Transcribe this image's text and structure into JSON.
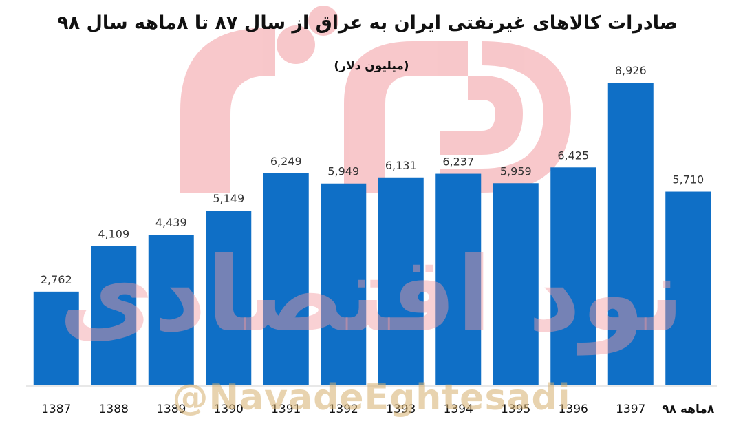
{
  "chart_data": {
    "type": "bar",
    "title": "صادرات کالاهای غیرنفتی ایران به عراق از سال ۸۷ تا ۸ماهه سال ۹۸",
    "subtitle": "(میلیون دلار)",
    "categories": [
      "1387",
      "1388",
      "1389",
      "1390",
      "1391",
      "1392",
      "1393",
      "1394",
      "1395",
      "1396",
      "1397",
      "۸ماهه ۹۸"
    ],
    "values": [
      2762,
      4109,
      4439,
      5149,
      6249,
      5949,
      6131,
      6237,
      5959,
      6425,
      8926,
      5710
    ],
    "value_labels": [
      "2,762",
      "4,109",
      "4,439",
      "5,149",
      "6,249",
      "5,949",
      "6,131",
      "6,237",
      "5,959",
      "6,425",
      "8,926",
      "5,710"
    ],
    "ylim": [
      0,
      9500
    ],
    "grid": false,
    "legend": "none",
    "bar_color": "#0f6fc6"
  },
  "watermark": {
    "handle": "@NavadeEghtesadi",
    "logo_text": "نود اقتصادی",
    "logo_color": "#f29aa0"
  }
}
